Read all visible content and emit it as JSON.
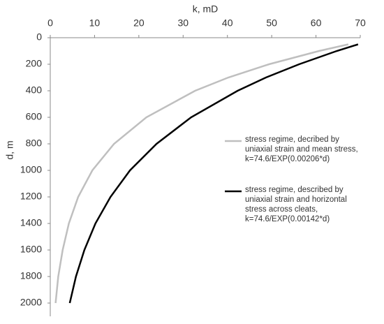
{
  "chart_data": {
    "type": "line",
    "x_label": "k, mD",
    "y_label": "d, m",
    "xlim": [
      0,
      70
    ],
    "xticks": [
      0,
      10,
      20,
      30,
      40,
      50,
      60,
      70
    ],
    "ylim": [
      0,
      2100
    ],
    "yticks": [
      0,
      200,
      400,
      600,
      800,
      1000,
      1200,
      1400,
      1600,
      1800,
      2000
    ],
    "y_inverted": true,
    "x_axis_position": "top",
    "grid": false,
    "series": [
      {
        "name": "stress regime, decribed by uniaxial strain and mean stress, k=74.6/EXP(0.00206*d)",
        "color": "#bfbfbf",
        "x": [
          67.3,
          60.7,
          49.4,
          40.2,
          32.7,
          21.7,
          14.4,
          9.5,
          6.3,
          4.2,
          2.8,
          1.8,
          1.2
        ],
        "y": [
          50,
          100,
          200,
          300,
          400,
          600,
          800,
          1000,
          1200,
          1400,
          1600,
          1800,
          2000
        ]
      },
      {
        "name": "stress regime, described by uniaxial strain and horizontal stress across cleats, k=74.6/EXP(0.00142*d)",
        "color": "#000000",
        "x": [
          69.5,
          64.7,
          56.2,
          48.7,
          42.3,
          31.8,
          24.0,
          18.0,
          13.6,
          10.2,
          7.7,
          5.8,
          4.4
        ],
        "y": [
          50,
          100,
          200,
          300,
          400,
          600,
          800,
          1000,
          1200,
          1400,
          1600,
          1800,
          2000
        ]
      }
    ]
  }
}
